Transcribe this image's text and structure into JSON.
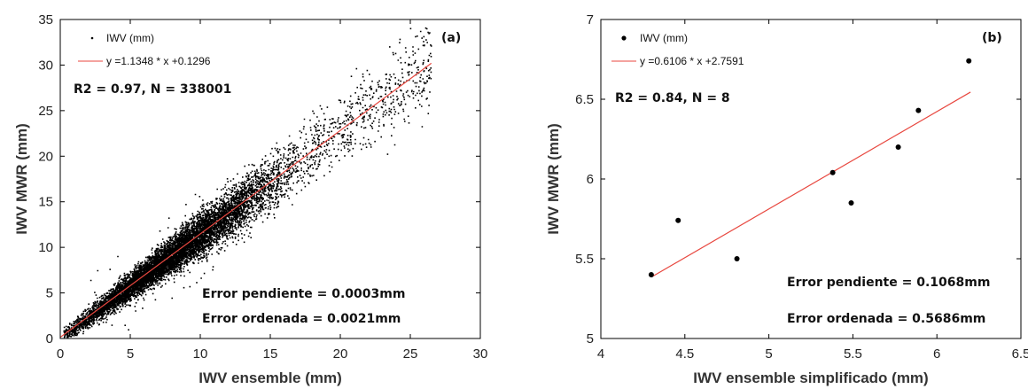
{
  "chart_data": [
    {
      "type": "scatter",
      "panel_label": "(a)",
      "xlabel": "IWV ensemble (mm)",
      "ylabel": "IWV MWR (mm)",
      "xlim": [
        0,
        30
      ],
      "ylim": [
        0,
        35
      ],
      "xticks": [
        "0",
        "5",
        "10",
        "15",
        "20",
        "25",
        "30"
      ],
      "yticks": [
        "0",
        "5",
        "10",
        "15",
        "20",
        "25",
        "30",
        "35"
      ],
      "grid": false,
      "legend_position": "top-left",
      "legend": {
        "points_label": "IWV (mm)",
        "fit_label": "y =1.1348 * x +0.1296"
      },
      "fit": {
        "slope": 1.1348,
        "intercept": 0.1296,
        "x_range": [
          0,
          26.5
        ],
        "color": "#e8473f"
      },
      "annotations": {
        "stats": "R2 = 0.97,   N = 338001",
        "slope_error": "Error pendiente = 0.0003mm",
        "intercept_error": "Error ordenada = 0.0021mm"
      },
      "point_cloud": {
        "n_points_total": 338001,
        "x_range": [
          0,
          26.5
        ],
        "point_color": "#000000"
      }
    },
    {
      "type": "scatter",
      "panel_label": "(b)",
      "xlabel": "IWV ensemble simplificado (mm)",
      "ylabel": "IWV MWR (mm)",
      "xlim": [
        4,
        6.5
      ],
      "ylim": [
        5,
        7
      ],
      "xticks": [
        "4",
        "4.5",
        "5",
        "5.5",
        "6",
        "6.5"
      ],
      "yticks": [
        "5",
        "5.5",
        "6",
        "6.5",
        "7"
      ],
      "grid": false,
      "legend_position": "top-left",
      "legend": {
        "points_label": "IWV (mm)",
        "fit_label": "y =0.6106 * x +2.7591"
      },
      "fit": {
        "slope": 0.6106,
        "intercept": 2.7591,
        "x_range": [
          4.3,
          6.2
        ],
        "color": "#e8473f"
      },
      "annotations": {
        "stats": "R2 = 0.84,   N = 8",
        "slope_error": "Error pendiente = 0.1068mm",
        "intercept_error": "Error ordenada = 0.5686mm"
      },
      "points": [
        {
          "x": 4.3,
          "y": 5.4
        },
        {
          "x": 4.46,
          "y": 5.74
        },
        {
          "x": 4.81,
          "y": 5.5
        },
        {
          "x": 5.38,
          "y": 6.04
        },
        {
          "x": 5.49,
          "y": 5.85
        },
        {
          "x": 5.77,
          "y": 6.2
        },
        {
          "x": 5.89,
          "y": 6.43
        },
        {
          "x": 6.19,
          "y": 6.74
        }
      ]
    }
  ]
}
